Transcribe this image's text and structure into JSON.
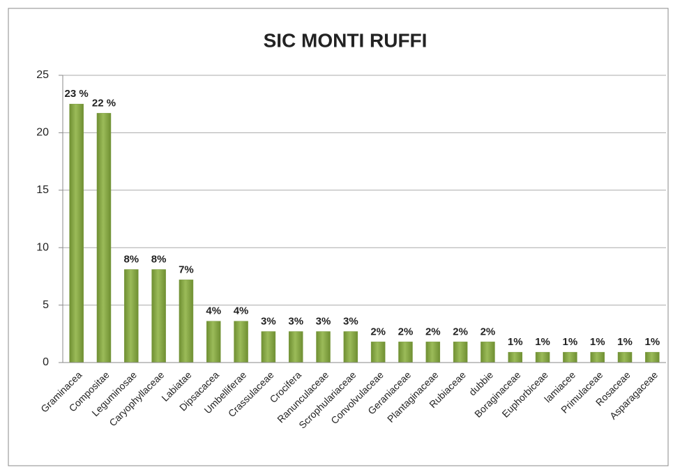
{
  "chart_data": {
    "type": "bar",
    "title": "SIC MONTI RUFFI",
    "categories": [
      "Graminacea",
      "Compositae",
      "Leguminosae",
      "Caryophyllaceae",
      "Labiatae",
      "Dipsacacea",
      "Umbelliferae",
      "Crassulaceae",
      "Crocifera",
      "Ranunculaceae",
      "Scrophulariaceae",
      "Convolvulaceae",
      "Geraniaceae",
      "Plantaginaceae",
      "Rubiaceae",
      "dubbie",
      "Boraginaceae",
      "Euphorbiceae",
      "lamiacee",
      "Primulaceae",
      "Rosaceae",
      "Asparagaceae"
    ],
    "values": [
      22.5,
      21.7,
      8.1,
      8.1,
      7.2,
      3.6,
      3.6,
      2.7,
      2.7,
      2.7,
      2.7,
      1.8,
      1.8,
      1.8,
      1.8,
      1.8,
      0.9,
      0.9,
      0.9,
      0.9,
      0.9,
      0.9
    ],
    "value_labels": [
      "23 %",
      "22 %",
      "8%",
      "8%",
      "7%",
      "4%",
      "4%",
      "3%",
      "3%",
      "3%",
      "3%",
      "2%",
      "2%",
      "2%",
      "2%",
      "2%",
      "1%",
      "1%",
      "1%",
      "1%",
      "1%",
      "1%"
    ],
    "color": "#9bbb59",
    "ylim": [
      0,
      25
    ],
    "yticks": [
      0,
      5,
      10,
      15,
      20,
      25
    ],
    "grid": true
  }
}
